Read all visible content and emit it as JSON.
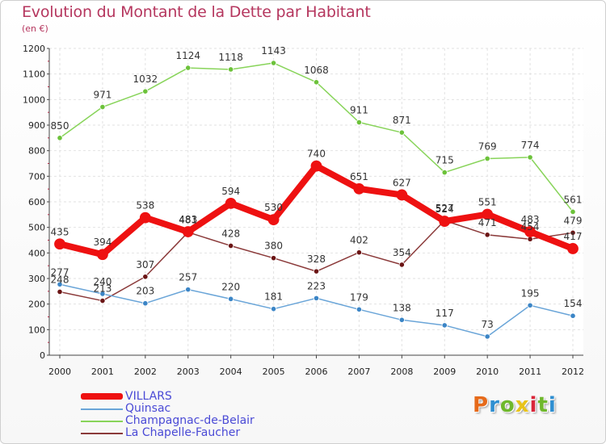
{
  "title": "Evolution du Montant de la Dette par Habitant",
  "subtitle": "(en €)",
  "logo": {
    "text": "Proxiti",
    "colors": [
      "#e66a1a",
      "#2f8fd1",
      "#6fb82c",
      "#e8c31a",
      "#d9263a",
      "#6fb82c",
      "#2f8fd1"
    ]
  },
  "chart_data": {
    "type": "line",
    "x": [
      "2000",
      "2001",
      "2002",
      "2003",
      "2004",
      "2005",
      "2006",
      "2007",
      "2008",
      "2009",
      "2010",
      "2011",
      "2012"
    ],
    "ylim": [
      0,
      1200
    ],
    "yticks": [
      "0",
      "100",
      "200",
      "300",
      "400",
      "500",
      "600",
      "700",
      "800",
      "900",
      "1000",
      "1100",
      "1200"
    ],
    "grid": true,
    "legend_position": "bottom-left",
    "series": [
      {
        "name": "Champagnac-de-Belair",
        "color": "#88d45a",
        "marker": "#6cc23a",
        "width": 1.5,
        "values": [
          850,
          971,
          1032,
          1124,
          1118,
          1143,
          1068,
          911,
          871,
          715,
          769,
          774,
          561
        ],
        "labels": [
          "850",
          "971",
          "1032",
          "1124",
          "1118",
          "1143",
          "1068",
          "911",
          "871",
          "715",
          "769",
          "774",
          "561"
        ]
      },
      {
        "name": "La Chapelle-Faucher",
        "color": "#8b3a3a",
        "marker": "#6b1515",
        "width": 1.5,
        "values": [
          248,
          213,
          307,
          481,
          428,
          380,
          328,
          402,
          354,
          527,
          471,
          454,
          479
        ],
        "labels": [
          "248",
          "213",
          "307",
          "481",
          "428",
          "380",
          "328",
          "402",
          "354",
          "527",
          "471",
          "454",
          "479"
        ]
      },
      {
        "name": "Quinsac",
        "color": "#6aa5d8",
        "marker": "#3b85c6",
        "width": 1.5,
        "values": [
          277,
          240,
          203,
          257,
          220,
          181,
          223,
          179,
          138,
          117,
          73,
          195,
          154
        ],
        "labels": [
          "277",
          "240",
          "203",
          "257",
          "220",
          "181",
          "223",
          "179",
          "138",
          "117",
          "73",
          "195",
          "154"
        ]
      },
      {
        "name": "VILLARS",
        "color": "#ee1111",
        "marker": "#ee1111",
        "width": 8,
        "values": [
          435,
          394,
          538,
          483,
          594,
          530,
          740,
          651,
          627,
          524,
          551,
          483,
          417
        ],
        "labels": [
          "435",
          "394",
          "538",
          "483",
          "594",
          "530",
          "740",
          "651",
          "627",
          "524",
          "551",
          "483",
          "417"
        ]
      }
    ],
    "legend": [
      "VILLARS",
      "Quinsac",
      "Champagnac-de-Belair",
      "La Chapelle-Faucher"
    ]
  }
}
